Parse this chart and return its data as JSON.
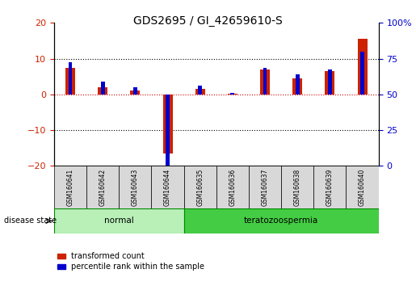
{
  "title": "GDS2695 / GI_42659610-S",
  "samples": [
    "GSM160641",
    "GSM160642",
    "GSM160643",
    "GSM160644",
    "GSM160635",
    "GSM160636",
    "GSM160637",
    "GSM160638",
    "GSM160639",
    "GSM160640"
  ],
  "transformed_count": [
    7.5,
    2.0,
    1.0,
    -16.5,
    1.5,
    0.2,
    7.0,
    4.5,
    6.5,
    15.5
  ],
  "percentile_rank_left": [
    9.0,
    3.5,
    2.0,
    -20.5,
    2.5,
    0.5,
    7.5,
    5.5,
    7.0,
    12.0
  ],
  "disease_groups": [
    {
      "label": "normal",
      "start": 0,
      "end": 3
    },
    {
      "label": "teratozoospermia",
      "start": 4,
      "end": 9
    }
  ],
  "ylim_left": [
    -20,
    20
  ],
  "ylim_right": [
    0,
    100
  ],
  "yticks_left": [
    -20,
    -10,
    0,
    10,
    20
  ],
  "yticks_right": [
    0,
    25,
    50,
    75,
    100
  ],
  "yticklabels_right": [
    "0",
    "25",
    "50",
    "75",
    "100%"
  ],
  "bar_color_red": "#cc2200",
  "bar_color_blue": "#0000cc",
  "zero_line_color": "#cc0000",
  "legend_red_label": "transformed count",
  "legend_blue_label": "percentile rank within the sample",
  "disease_state_label": "disease state",
  "normal_bg": "#b8f0b8",
  "terato_bg": "#44cc44",
  "label_bg": "#d8d8d8"
}
